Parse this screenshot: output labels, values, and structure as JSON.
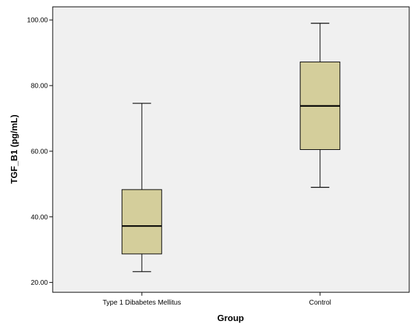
{
  "chart_data": {
    "type": "box",
    "xlabel": "Group",
    "ylabel": "TGF_B1 (pg/mL)",
    "ylim": [
      17,
      104
    ],
    "yticks": [
      "20.00",
      "40.00",
      "60.00",
      "80.00",
      "100.00"
    ],
    "grid": false,
    "colors": {
      "box_fill": "#d4ce9b",
      "plot_bg": "#f0f0f0",
      "stroke": "#000000"
    },
    "categories": [
      "Type 1 Dibabetes Mellitus",
      "Control"
    ],
    "boxes": [
      {
        "category": "Type 1 Dibabetes Mellitus",
        "min": 23.3,
        "q1": 28.7,
        "median": 37.2,
        "q3": 48.3,
        "max": 74.6
      },
      {
        "category": "Control",
        "min": 49.0,
        "q1": 60.5,
        "median": 73.8,
        "q3": 87.2,
        "max": 99.0
      }
    ]
  }
}
